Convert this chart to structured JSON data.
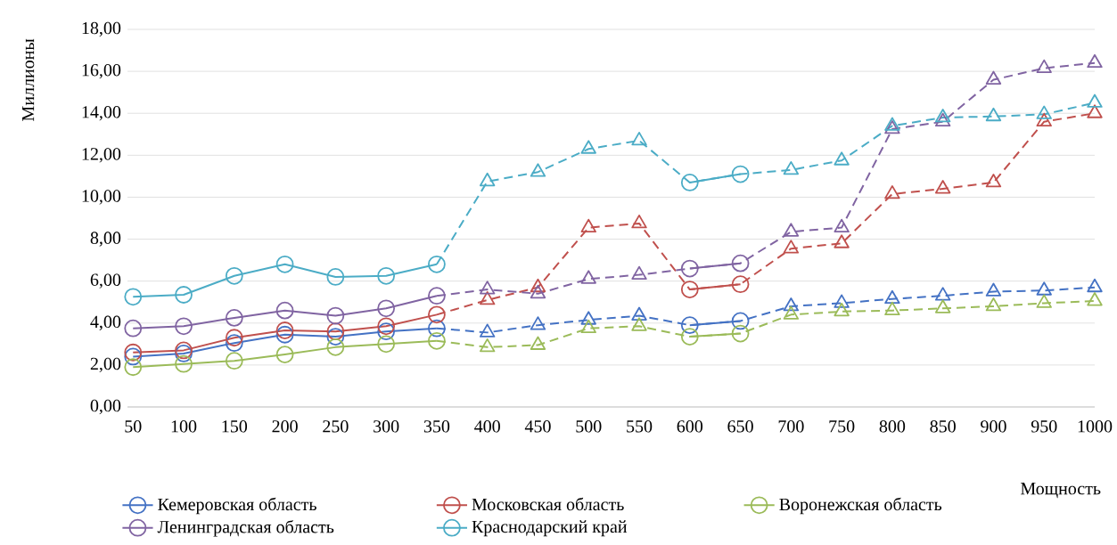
{
  "chart_data": {
    "type": "line",
    "xlabel": "Мощность",
    "ylabel": "Миллионы",
    "categories": [
      "50",
      "100",
      "150",
      "200",
      "250",
      "300",
      "350",
      "400",
      "450",
      "500",
      "550",
      "600",
      "650",
      "700",
      "750",
      "800",
      "850",
      "900",
      "950",
      "1000"
    ],
    "ylim": [
      0,
      18
    ],
    "yticks": [
      {
        "value": 0,
        "label": "0,00"
      },
      {
        "value": 2,
        "label": "2,00"
      },
      {
        "value": 4,
        "label": "4,00"
      },
      {
        "value": 6,
        "label": "6,00"
      },
      {
        "value": 8,
        "label": "8,00"
      },
      {
        "value": 10,
        "label": "10,00"
      },
      {
        "value": 12,
        "label": "12,00"
      },
      {
        "value": 14,
        "label": "14,00"
      },
      {
        "value": 16,
        "label": "16,00"
      },
      {
        "value": 18,
        "label": "18,00"
      }
    ],
    "grid": "y",
    "legend": "bottom",
    "series": [
      {
        "name": "Кемеровская область",
        "color": "#4472c4",
        "marker": "circle",
        "line_style": "solid",
        "values": [
          2.4,
          2.55,
          3.05,
          3.45,
          3.35,
          3.6,
          3.75,
          null,
          null,
          null,
          null,
          3.9,
          4.1,
          null,
          null,
          null,
          null,
          null,
          null,
          null
        ]
      },
      {
        "name": "Московская область",
        "color": "#c0504d",
        "marker": "circle",
        "line_style": "solid",
        "values": [
          2.6,
          2.7,
          3.3,
          3.65,
          3.6,
          3.85,
          4.4,
          null,
          null,
          null,
          null,
          5.6,
          5.85,
          null,
          null,
          null,
          null,
          null,
          null,
          null
        ]
      },
      {
        "name": "Воронежская область",
        "color": "#9bbb59",
        "marker": "circle",
        "line_style": "solid",
        "values": [
          1.9,
          2.05,
          2.2,
          2.5,
          2.85,
          3.0,
          3.15,
          null,
          null,
          null,
          null,
          3.35,
          3.5,
          null,
          null,
          null,
          null,
          null,
          null,
          null
        ]
      },
      {
        "name": "Ленинградская область",
        "color": "#8064a2",
        "marker": "circle",
        "line_style": "solid",
        "values": [
          3.75,
          3.85,
          4.25,
          4.6,
          4.35,
          4.7,
          5.3,
          null,
          null,
          null,
          null,
          6.6,
          6.85,
          null,
          null,
          null,
          null,
          null,
          null,
          null
        ]
      },
      {
        "name": "Краснодарский край",
        "color": "#4bacc6",
        "marker": "circle",
        "line_style": "solid",
        "values": [
          5.25,
          5.35,
          6.25,
          6.8,
          6.2,
          6.25,
          6.8,
          null,
          null,
          null,
          null,
          10.7,
          11.1,
          null,
          null,
          null,
          null,
          null,
          null,
          null
        ]
      },
      {
        "color": "#4472c4",
        "marker": "triangle",
        "line_style": "dashed",
        "values": [
          null,
          null,
          null,
          null,
          null,
          null,
          3.75,
          3.55,
          3.9,
          4.15,
          4.35,
          3.9,
          4.1,
          4.8,
          4.95,
          5.15,
          5.3,
          5.5,
          5.55,
          5.7
        ]
      },
      {
        "color": "#c0504d",
        "marker": "triangle",
        "line_style": "dashed",
        "values": [
          null,
          null,
          null,
          null,
          null,
          null,
          4.4,
          5.1,
          5.7,
          8.55,
          8.75,
          5.6,
          5.85,
          7.55,
          7.8,
          10.15,
          10.4,
          10.7,
          13.6,
          14.0
        ]
      },
      {
        "color": "#9bbb59",
        "marker": "triangle",
        "line_style": "dashed",
        "values": [
          null,
          null,
          null,
          null,
          null,
          null,
          3.15,
          2.85,
          2.95,
          3.75,
          3.85,
          3.35,
          3.5,
          4.4,
          4.55,
          4.6,
          4.7,
          4.8,
          4.95,
          5.05
        ]
      },
      {
        "color": "#8064a2",
        "marker": "triangle",
        "line_style": "dashed",
        "values": [
          null,
          null,
          null,
          null,
          null,
          null,
          5.3,
          5.6,
          5.4,
          6.1,
          6.3,
          6.6,
          6.85,
          8.35,
          8.55,
          13.25,
          13.6,
          15.6,
          16.15,
          16.4
        ]
      },
      {
        "color": "#4bacc6",
        "marker": "triangle",
        "line_style": "dashed",
        "values": [
          null,
          null,
          null,
          null,
          null,
          null,
          6.8,
          10.75,
          11.2,
          12.3,
          12.7,
          10.7,
          11.1,
          11.3,
          11.75,
          13.4,
          13.8,
          13.85,
          13.95,
          14.5
        ]
      }
    ]
  }
}
